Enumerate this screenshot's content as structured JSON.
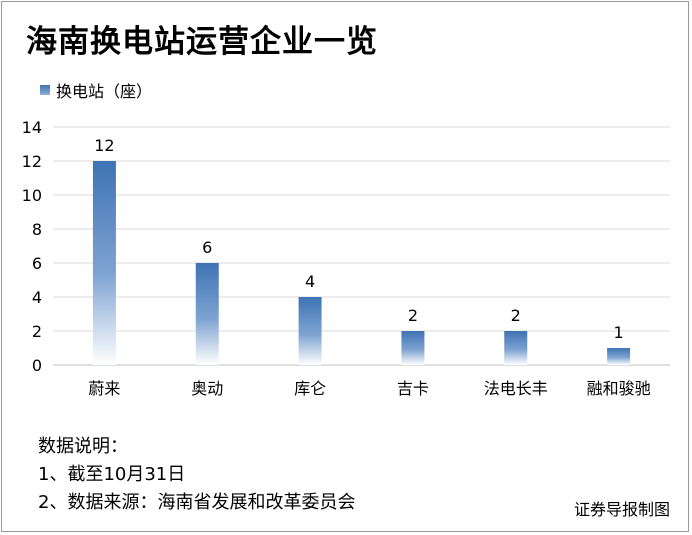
{
  "title": "海南换电站运营企业一览",
  "notes": {
    "heading": "数据说明：",
    "line1": "1、截至10月31日",
    "line2": "2、数据来源：海南省发展和改革委员会"
  },
  "source": "证券导报制图",
  "colors": {
    "bar_top": "#3f73b3",
    "bar_bottom": "#ffffff",
    "grid": "#d9d9d9"
  },
  "chart_data": {
    "type": "bar",
    "categories": [
      "蔚来",
      "奥动",
      "库仑",
      "吉卡",
      "法电长丰",
      "融和骏驰"
    ],
    "series": [
      {
        "name": "换电站（座）",
        "values": [
          12,
          6,
          4,
          2,
          2,
          1
        ]
      }
    ],
    "ylim": [
      0,
      14
    ],
    "yticks": [
      0,
      2,
      4,
      6,
      8,
      10,
      12,
      14
    ],
    "grid": true,
    "legend": "top-left",
    "data_labels": true
  }
}
